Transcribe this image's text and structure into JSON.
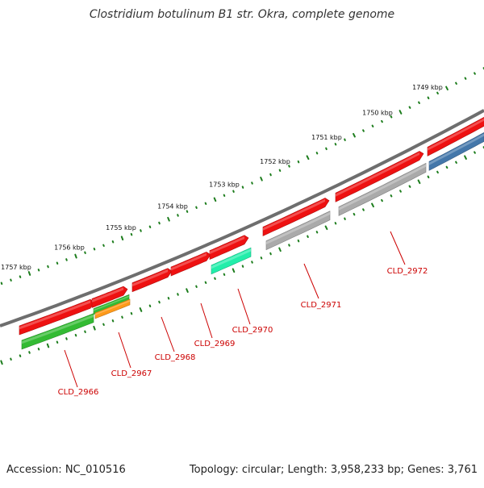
{
  "title": "Clostridium botulinum B1 str. Okra, complete genome",
  "footer": {
    "accession": "Accession: NC_010516",
    "summary": "Topology: circular; Length: 3,958,233 bp; Genes: 3,761"
  },
  "ruler": {
    "labels": [
      "1757 kbp",
      "1756 kbp",
      "1755 kbp",
      "1754 kbp",
      "1753 kbp",
      "1752 kbp",
      "1751 kbp",
      "1750 kbp",
      "1749 kbp"
    ]
  },
  "colors": {
    "backbone": "#6e6e6e",
    "ticks": "#1d7d1d",
    "cds": "#ee1111",
    "gene": "#33bb33",
    "pseudo": "#aaaaaa",
    "orange": "#ff9a1a",
    "teal": "#22eeaa",
    "blue": "#4477aa",
    "label": "#cc0000"
  },
  "genes": [
    {
      "label": "CLD_2966"
    },
    {
      "label": "CLD_2967"
    },
    {
      "label": "CLD_2968"
    },
    {
      "label": "CLD_2969"
    },
    {
      "label": "CLD_2970"
    },
    {
      "label": "CLD_2971"
    },
    {
      "label": "CLD_2972"
    }
  ]
}
